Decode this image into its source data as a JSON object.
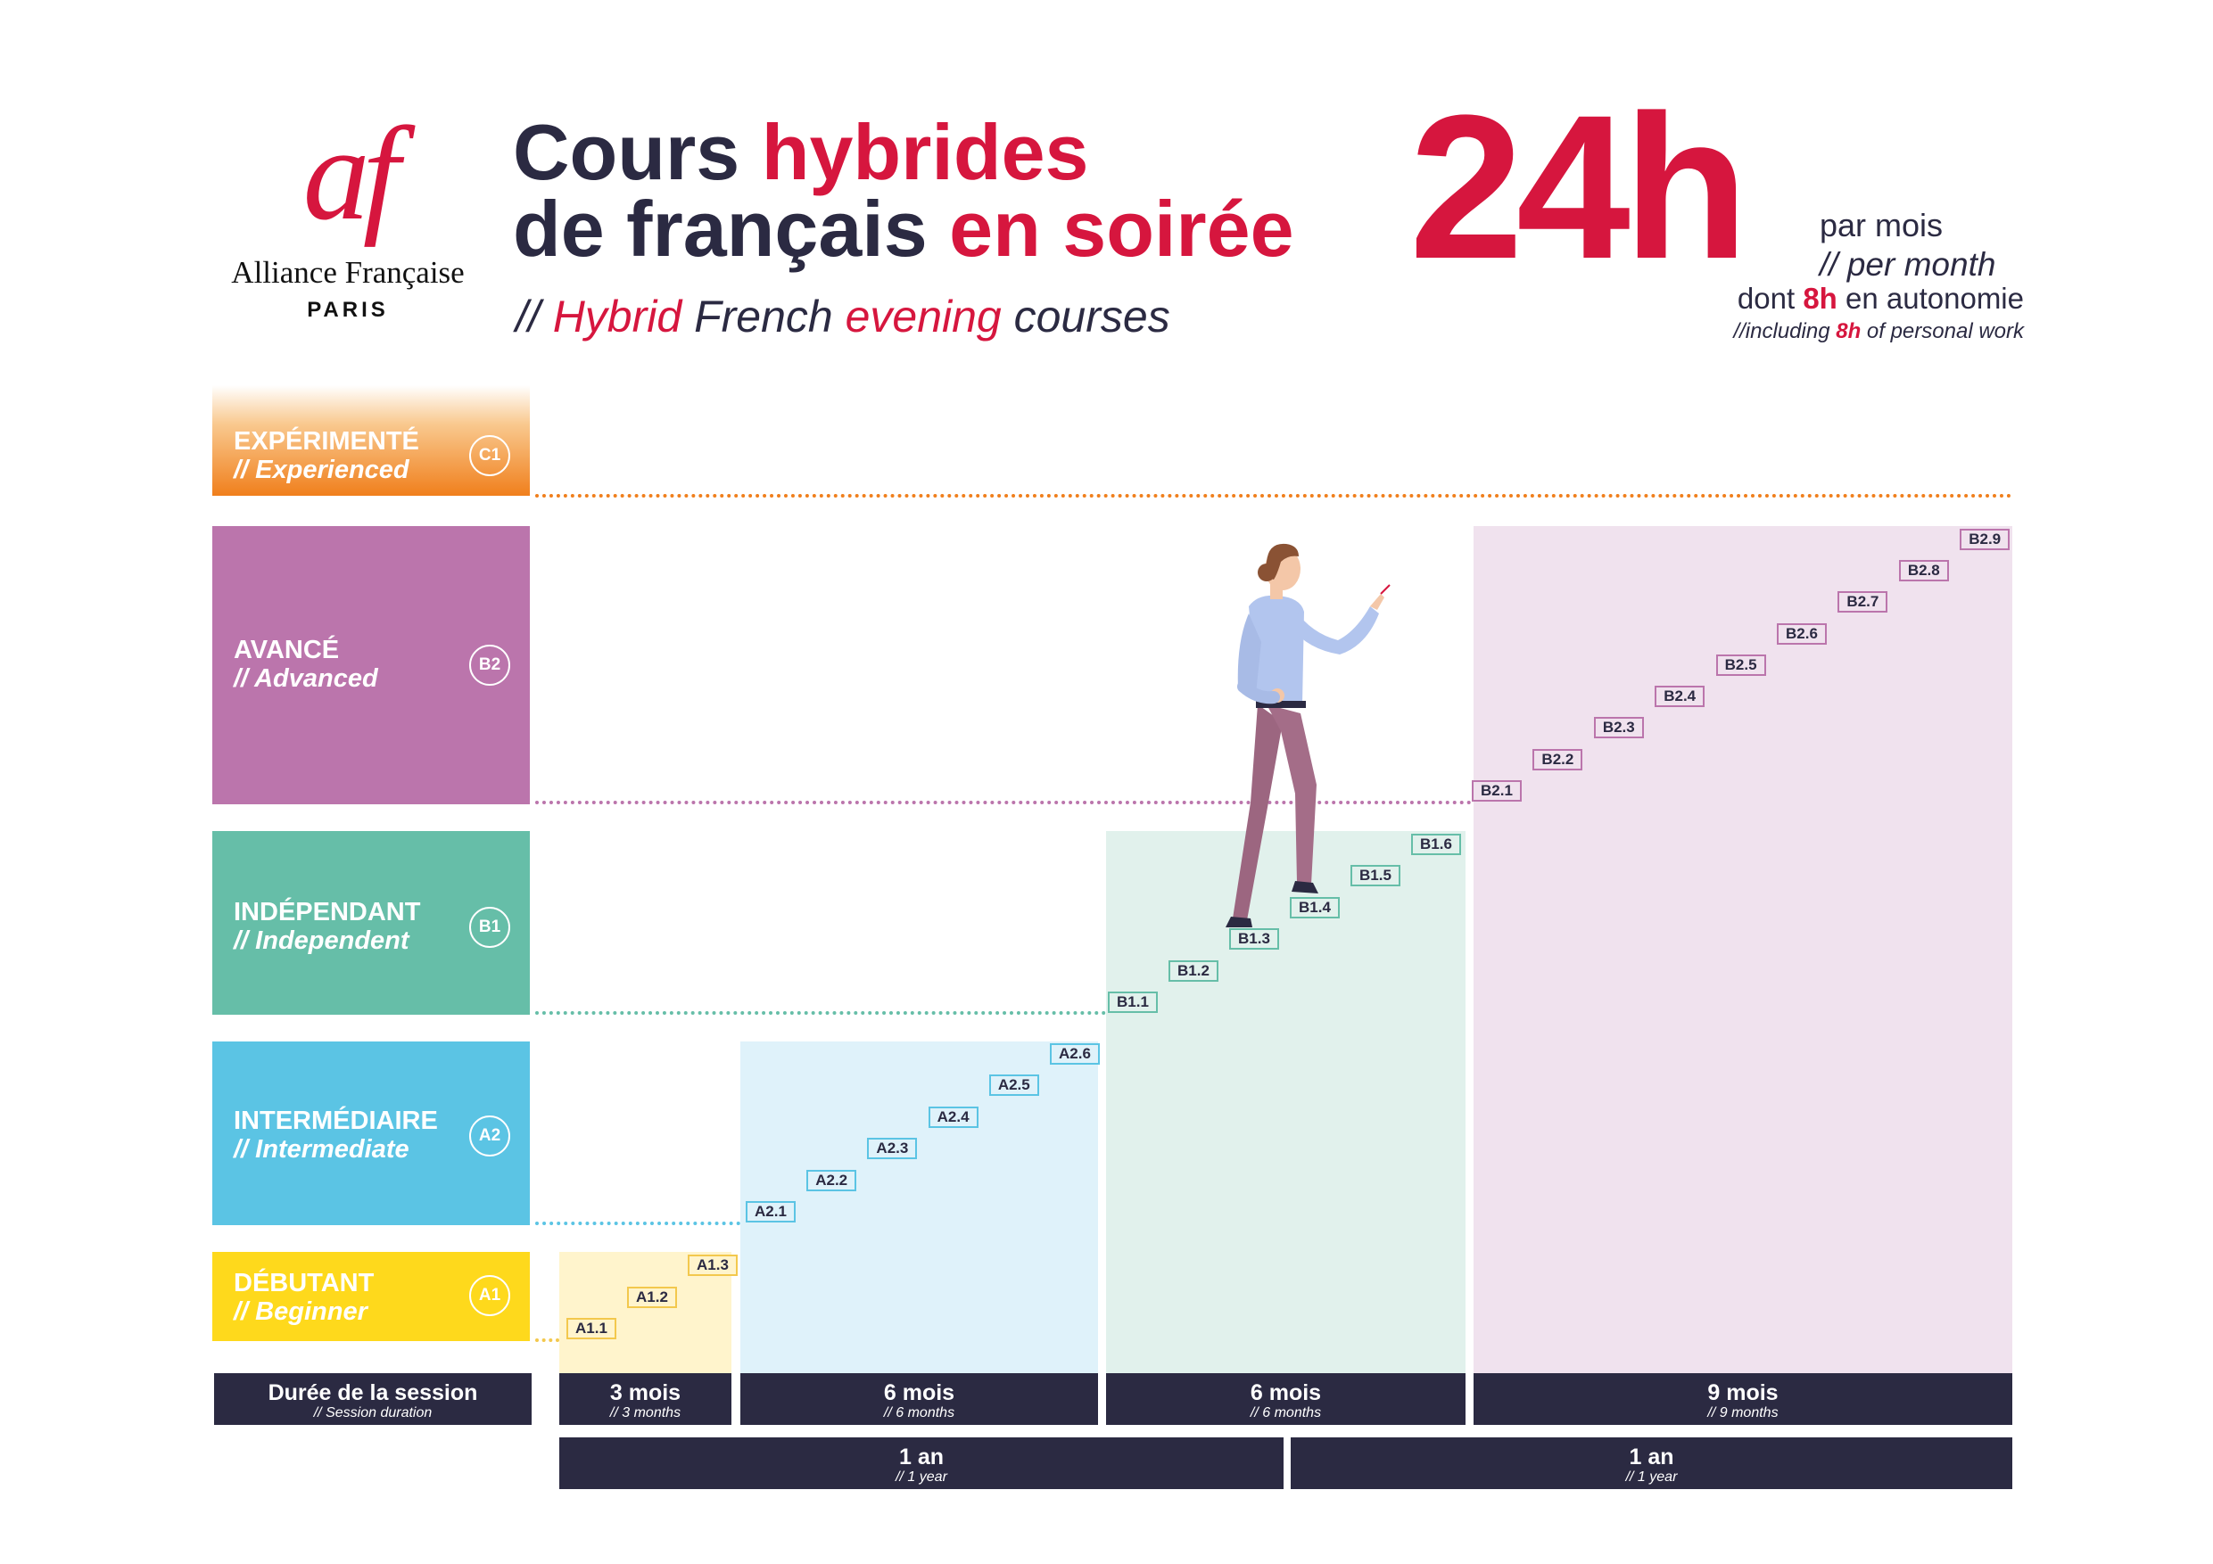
{
  "logo": {
    "monogram": "af",
    "name": "Alliance Française",
    "city": "PARIS"
  },
  "title": {
    "line1_a": "Cours ",
    "line1_b": "hybrides",
    "line2_a": "de français ",
    "line2_b": "en soirée"
  },
  "subtitle": {
    "prefix": "// ",
    "w1": "Hybrid",
    "w2": " French ",
    "w3": "evening",
    "w4": " courses"
  },
  "hours": {
    "value": "24h",
    "fr": "par mois",
    "en": "// per month",
    "auto_fr_a": "dont ",
    "auto_fr_b": "8h",
    "auto_fr_c": " en autonomie",
    "auto_en_a": "//including ",
    "auto_en_b": "8h",
    "auto_en_c": " of personal work"
  },
  "levels": [
    {
      "fr": "EXPÉRIMENTÉ",
      "en": "// Experienced",
      "code": "C1",
      "color": "#f07f1c"
    },
    {
      "fr": "AVANCÉ",
      "en": "// Advanced",
      "code": "B2",
      "color": "#bb75ac"
    },
    {
      "fr": "INDÉPENDANT",
      "en": "// Independent",
      "code": "B1",
      "color": "#66bea8"
    },
    {
      "fr": "INTERMÉDIAIRE",
      "en": "// Intermediate",
      "code": "A2",
      "color": "#5bc4e4"
    },
    {
      "fr": "DÉBUTANT",
      "en": "// Beginner",
      "code": "A1",
      "color": "#fed91c"
    }
  ],
  "steps": {
    "A1": [
      "A1.1",
      "A1.2",
      "A1.3"
    ],
    "A2": [
      "A2.1",
      "A2.2",
      "A2.3",
      "A2.4",
      "A2.5",
      "A2.6"
    ],
    "B1": [
      "B1.1",
      "B1.2",
      "B1.3",
      "B1.4",
      "B1.5",
      "B1.6"
    ],
    "B2": [
      "B2.1",
      "B2.2",
      "B2.3",
      "B2.4",
      "B2.5",
      "B2.6",
      "B2.7",
      "B2.8",
      "B2.9"
    ]
  },
  "durations": {
    "label": {
      "fr": "Durée de la session",
      "en": "// Session duration"
    },
    "sessions": [
      {
        "fr": "3 mois",
        "en": "// 3 months"
      },
      {
        "fr": "6 mois",
        "en": "// 6 months"
      },
      {
        "fr": "6 mois",
        "en": "// 6 months"
      },
      {
        "fr": "9 mois",
        "en": "// 9 months"
      }
    ],
    "years": [
      {
        "fr": "1 an",
        "en": "// 1 year"
      },
      {
        "fr": "1 an",
        "en": "// 1 year"
      }
    ]
  }
}
